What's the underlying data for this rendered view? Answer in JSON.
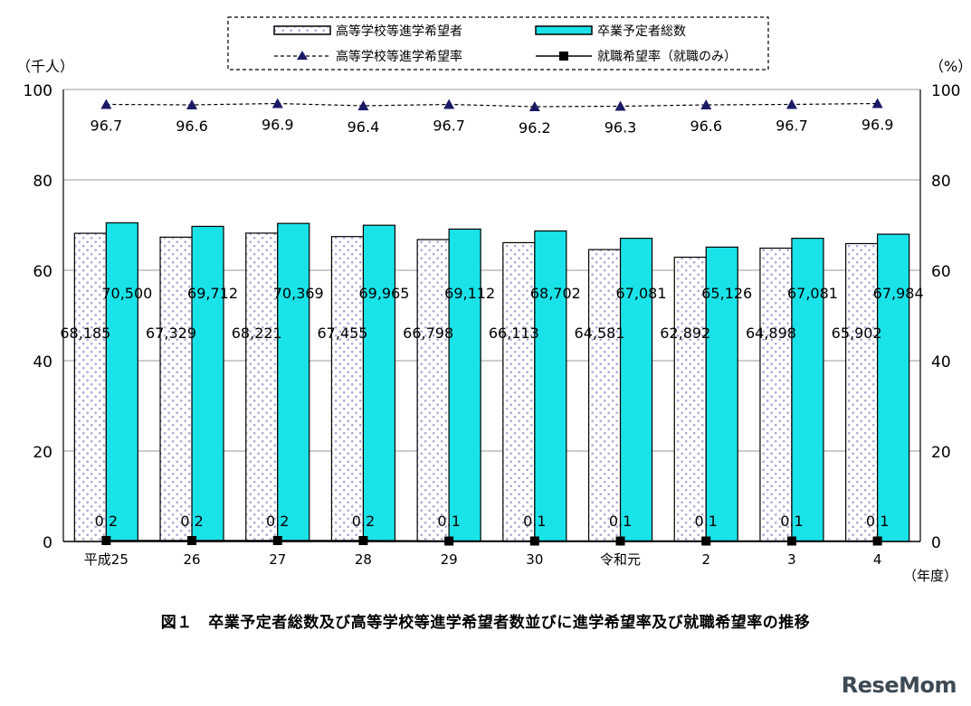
{
  "chart_data": {
    "type": "bar",
    "categories": [
      "平成25",
      "26",
      "27",
      "28",
      "29",
      "30",
      "令和元",
      "2",
      "3",
      "4"
    ],
    "series": [
      {
        "name": "高等学校等進学希望者",
        "kind": "bar",
        "color": "#ffffff",
        "pattern": "dotted-lavender",
        "values": [
          68185,
          67329,
          68221,
          67455,
          66798,
          66113,
          64581,
          62892,
          64898,
          65902
        ],
        "labels": [
          "68,185",
          "67,329",
          "68,221",
          "67,455",
          "66,798",
          "66,113",
          "64,581",
          "62,892",
          "64,898",
          "65,902"
        ]
      },
      {
        "name": "卒業予定者総数",
        "kind": "bar",
        "color": "#19e3e8",
        "values": [
          70500,
          69712,
          70369,
          69965,
          69112,
          68702,
          67081,
          65126,
          67081,
          67984
        ],
        "labels": [
          "70,500",
          "69,712",
          "70,369",
          "69,965",
          "69,112",
          "68,702",
          "67,081",
          "65,126",
          "67,081",
          "67,984"
        ]
      },
      {
        "name": "高等学校等進学希望率",
        "kind": "line",
        "axis": "right",
        "style": "dashed",
        "marker": "triangle",
        "values": [
          96.7,
          96.6,
          96.9,
          96.4,
          96.7,
          96.2,
          96.3,
          96.6,
          96.7,
          96.9
        ],
        "labels": [
          "96.7",
          "96.6",
          "96.9",
          "96.4",
          "96.7",
          "96.2",
          "96.3",
          "96.6",
          "96.7",
          "96.9"
        ]
      },
      {
        "name": "就職希望率（就職のみ）",
        "kind": "line",
        "axis": "right",
        "style": "solid",
        "marker": "square",
        "values": [
          0.2,
          0.2,
          0.2,
          0.2,
          0.1,
          0.1,
          0.1,
          0.1,
          0.1,
          0.1
        ],
        "labels": [
          "0.2",
          "0.2",
          "0.2",
          "0.2",
          "0.1",
          "0.1",
          "0.1",
          "0.1",
          "0.1",
          "0.1"
        ]
      }
    ],
    "y_left": {
      "label": "（千人）",
      "range": [
        0,
        100
      ],
      "ticks": [
        "0",
        "20",
        "40",
        "60",
        "80",
        "100"
      ],
      "unit_divisor": 1000
    },
    "y_right": {
      "label": "（%）",
      "range": [
        0,
        100
      ],
      "ticks": [
        "0",
        "20",
        "40",
        "60",
        "80",
        "100"
      ]
    },
    "x_unit_label": "（年度）",
    "grid": true,
    "legend_position": "top-center"
  },
  "caption": "図１　卒業予定者総数及び高等学校等進学希望者数並びに進学希望率及び就職希望率の推移",
  "watermark": "ReseMom"
}
